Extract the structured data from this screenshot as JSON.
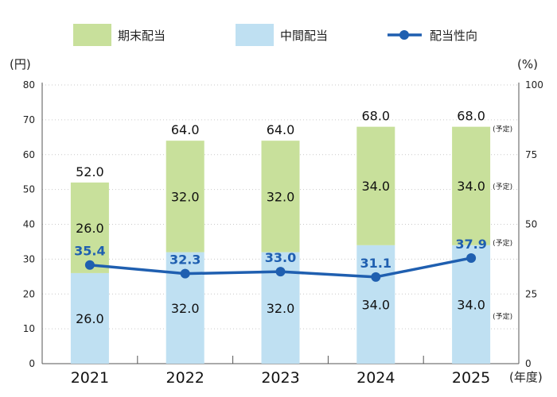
{
  "chart_data": {
    "type": "bar",
    "categories": [
      "2021",
      "2022",
      "2023",
      "2024",
      "2025"
    ],
    "series": [
      {
        "name": "期末配当",
        "kind": "bar",
        "stack": "dividend",
        "values": [
          26.0,
          32.0,
          32.0,
          34.0,
          34.0
        ],
        "labels": [
          "26.0",
          "32.0",
          "32.0",
          "34.0",
          "34.0"
        ],
        "color": "#c8e09b"
      },
      {
        "name": "中間配当",
        "kind": "bar",
        "stack": "dividend",
        "values": [
          26.0,
          32.0,
          32.0,
          34.0,
          34.0
        ],
        "labels": [
          "26.0",
          "32.0",
          "32.0",
          "34.0",
          "34.0"
        ],
        "color": "#bfe0f2"
      },
      {
        "name": "配当性向",
        "kind": "line",
        "axis": "right",
        "values": [
          35.4,
          32.3,
          33.0,
          31.1,
          37.9
        ],
        "labels": [
          "35.4",
          "32.3",
          "33.0",
          "31.1",
          "37.9"
        ],
        "color": "#1f5fb0"
      }
    ],
    "totals": [
      52.0,
      64.0,
      64.0,
      68.0,
      68.0
    ],
    "total_labels": [
      "52.0",
      "64.0",
      "64.0",
      "68.0",
      "68.0"
    ],
    "y_left": {
      "unit": "(円)",
      "range": [
        0,
        80
      ],
      "ticks": [
        0,
        10,
        20,
        30,
        40,
        50,
        60,
        70,
        80
      ],
      "tick_labels": [
        "0",
        "10",
        "20",
        "30",
        "40",
        "50",
        "60",
        "70",
        "80"
      ]
    },
    "y_right": {
      "unit": "(%)",
      "range": [
        0,
        100
      ],
      "ticks": [
        0,
        25,
        50,
        75,
        100
      ],
      "tick_labels": [
        "0",
        "25",
        "50",
        "75",
        "100"
      ]
    },
    "x_unit": "(年度)",
    "forecast_note": "(予定)",
    "grid": "horizontal-dotted",
    "legend_position": "top"
  }
}
